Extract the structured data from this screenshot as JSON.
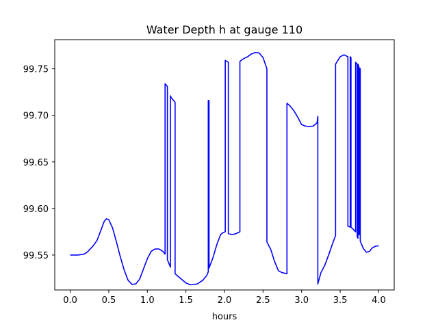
{
  "chart_data": {
    "type": "line",
    "title": "Water Depth h at gauge 110",
    "xlabel": "hours",
    "ylabel": "",
    "xlim": [
      -0.2,
      4.2
    ],
    "ylim": [
      99.5125,
      99.7813
    ],
    "x_ticks": [
      0.0,
      0.5,
      1.0,
      1.5,
      2.0,
      2.5,
      3.0,
      3.5,
      4.0
    ],
    "x_tick_labels": [
      "0.0",
      "0.5",
      "1.0",
      "1.5",
      "2.0",
      "2.5",
      "3.0",
      "3.5",
      "4.0"
    ],
    "y_ticks": [
      99.55,
      99.6,
      99.65,
      99.7,
      99.75
    ],
    "y_tick_labels": [
      "99.55",
      "99.60",
      "99.65",
      "99.70",
      "99.75"
    ],
    "grid": false,
    "legend": "none",
    "series": [
      {
        "color": "#0000ff",
        "points": [
          [
            0.0,
            99.55
          ],
          [
            0.1,
            99.55
          ],
          [
            0.18,
            99.551
          ],
          [
            0.22,
            99.553
          ],
          [
            0.3,
            99.56
          ],
          [
            0.35,
            99.566
          ],
          [
            0.4,
            99.577
          ],
          [
            0.44,
            99.586
          ],
          [
            0.47,
            99.589
          ],
          [
            0.5,
            99.588
          ],
          [
            0.55,
            99.579
          ],
          [
            0.6,
            99.564
          ],
          [
            0.65,
            99.548
          ],
          [
            0.7,
            99.534
          ],
          [
            0.75,
            99.523
          ],
          [
            0.8,
            99.5185
          ],
          [
            0.85,
            99.519
          ],
          [
            0.9,
            99.524
          ],
          [
            0.95,
            99.535
          ],
          [
            1.0,
            99.546
          ],
          [
            1.05,
            99.554
          ],
          [
            1.1,
            99.5565
          ],
          [
            1.15,
            99.5565
          ],
          [
            1.2,
            99.554
          ],
          [
            1.23,
            99.551
          ],
          [
            1.23,
            99.734
          ],
          [
            1.26,
            99.731
          ],
          [
            1.26,
            99.545
          ],
          [
            1.3,
            99.537
          ],
          [
            1.3,
            99.721
          ],
          [
            1.31,
            99.719
          ],
          [
            1.36,
            99.714
          ],
          [
            1.36,
            99.53
          ],
          [
            1.4,
            99.527
          ],
          [
            1.5,
            99.52
          ],
          [
            1.56,
            99.518
          ],
          [
            1.65,
            99.519
          ],
          [
            1.72,
            99.523
          ],
          [
            1.77,
            99.528
          ],
          [
            1.79,
            99.532
          ],
          [
            1.79,
            99.716
          ],
          [
            1.8,
            99.716
          ],
          [
            1.8,
            99.536
          ],
          [
            1.85,
            99.547
          ],
          [
            1.9,
            99.561
          ],
          [
            1.95,
            99.572
          ],
          [
            1.98,
            99.574
          ],
          [
            2.01,
            99.575
          ],
          [
            2.01,
            99.759
          ],
          [
            2.05,
            99.757
          ],
          [
            2.05,
            99.573
          ],
          [
            2.1,
            99.572
          ],
          [
            2.15,
            99.573
          ],
          [
            2.2,
            99.575
          ],
          [
            2.2,
            99.758
          ],
          [
            2.25,
            99.761
          ],
          [
            2.3,
            99.763
          ],
          [
            2.35,
            99.766
          ],
          [
            2.4,
            99.7675
          ],
          [
            2.45,
            99.767
          ],
          [
            2.5,
            99.762
          ],
          [
            2.55,
            99.75
          ],
          [
            2.55,
            99.564
          ],
          [
            2.6,
            99.556
          ],
          [
            2.65,
            99.543
          ],
          [
            2.7,
            99.533
          ],
          [
            2.75,
            99.531
          ],
          [
            2.81,
            99.53
          ],
          [
            2.81,
            99.713
          ],
          [
            2.84,
            99.711
          ],
          [
            2.9,
            99.705
          ],
          [
            2.95,
            99.698
          ],
          [
            3.0,
            99.69
          ],
          [
            3.05,
            99.6885
          ],
          [
            3.1,
            99.688
          ],
          [
            3.15,
            99.6885
          ],
          [
            3.2,
            99.692
          ],
          [
            3.21,
            99.699
          ],
          [
            3.21,
            99.519
          ],
          [
            3.25,
            99.531
          ],
          [
            3.3,
            99.539
          ],
          [
            3.35,
            99.55
          ],
          [
            3.4,
            99.562
          ],
          [
            3.44,
            99.571
          ],
          [
            3.44,
            99.755
          ],
          [
            3.5,
            99.763
          ],
          [
            3.55,
            99.765
          ],
          [
            3.6,
            99.763
          ],
          [
            3.6,
            99.581
          ],
          [
            3.63,
            99.58
          ],
          [
            3.63,
            99.763
          ],
          [
            3.64,
            99.762
          ],
          [
            3.64,
            99.58
          ],
          [
            3.7,
            99.575
          ],
          [
            3.7,
            99.757
          ],
          [
            3.72,
            99.755
          ],
          [
            3.72,
            99.57
          ],
          [
            3.73,
            99.568
          ],
          [
            3.73,
            99.755
          ],
          [
            3.74,
            99.753
          ],
          [
            3.74,
            99.572
          ],
          [
            3.75,
            99.572
          ],
          [
            3.75,
            99.751
          ],
          [
            3.76,
            99.75
          ],
          [
            3.76,
            99.565
          ],
          [
            3.8,
            99.557
          ],
          [
            3.84,
            99.553
          ],
          [
            3.88,
            99.554
          ],
          [
            3.92,
            99.558
          ],
          [
            3.96,
            99.5595
          ],
          [
            4.0,
            99.56
          ]
        ]
      }
    ]
  }
}
